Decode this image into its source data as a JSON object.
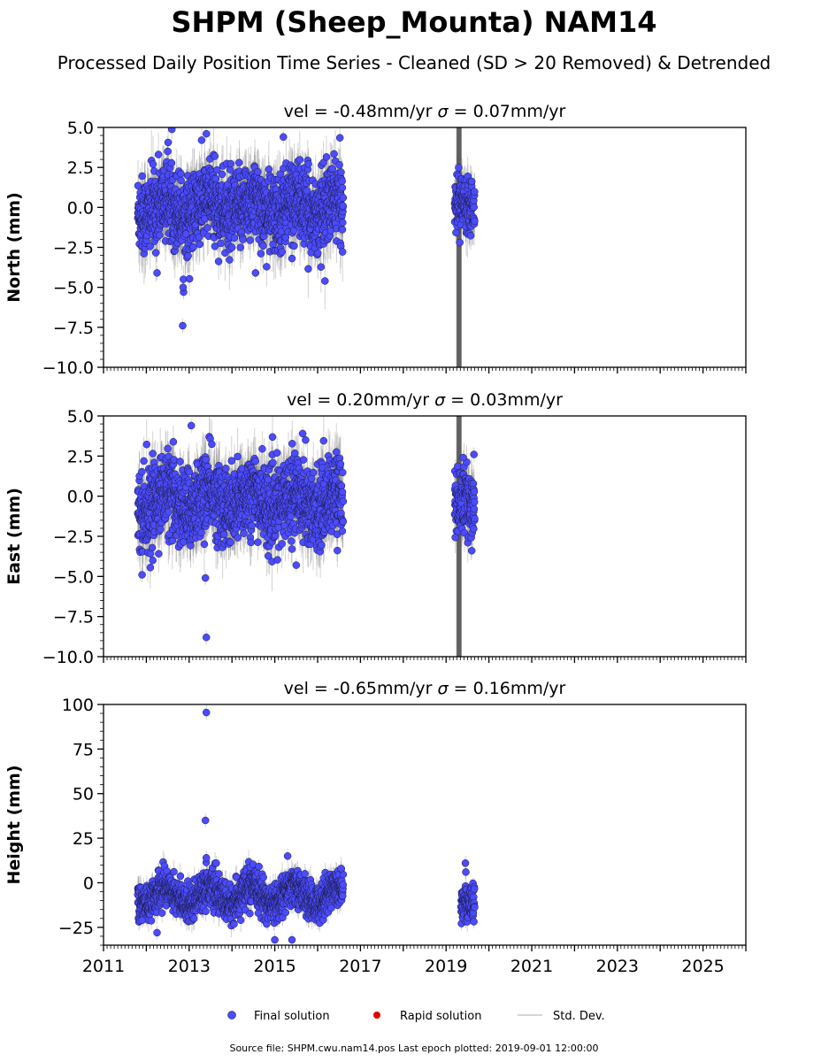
{
  "title": "SHPM (Sheep_Mounta) NAM14",
  "subtitle": "Processed Daily Position Time Series - Cleaned (SD > 20 Removed) & Detrended",
  "source_note": "Source file: SHPM.cwu.nam14.pos  Last epoch plotted: 2019-09-01 12:00:00",
  "legend": [
    {
      "label": "Final solution",
      "color": "#4b4bff",
      "marker": "circle"
    },
    {
      "label": "Rapid solution",
      "color": "#e00000",
      "marker": "circle"
    },
    {
      "label": "Std. Dev.",
      "color": "#c8c8c8",
      "marker": "line"
    }
  ],
  "chart_data": [
    {
      "type": "scatter",
      "panel": "north",
      "title_prefix": "vel = -0.48mm/yr",
      "title_sigma": " = 0.07mm/yr",
      "ylabel": "North (mm)",
      "xlim": [
        2011,
        2026
      ],
      "ylim": [
        -10,
        5
      ],
      "yticks": [
        5,
        2.5,
        0,
        -2.5,
        -5,
        -7.5,
        -10
      ],
      "ytick_labels": [
        "5.0",
        "2.5",
        "0.0",
        "−2.5",
        "−5.0",
        "−7.5",
        "−10.0"
      ],
      "yminor_step": 0.5,
      "segments": [
        {
          "start": 2011.8,
          "end": 2016.6,
          "center": 0.0,
          "spread": 1.2,
          "err": 1.3,
          "seasonal": 0.5
        },
        {
          "start": 2019.2,
          "end": 2019.67,
          "center": 0.2,
          "spread": 0.8,
          "err": 1.0,
          "seasonal": 0.2
        }
      ],
      "wide_error_bar": {
        "x": 2019.3,
        "low": -10,
        "high": 5
      },
      "outliers": [
        {
          "x": 2012.85,
          "y": -7.4
        },
        {
          "x": 2012.87,
          "y": -5.3
        },
        {
          "x": 2012.86,
          "y": -5.0
        },
        {
          "x": 2012.25,
          "y": -4.1
        },
        {
          "x": 2014.55,
          "y": -4.1
        },
        {
          "x": 2015.4,
          "y": -3.2
        },
        {
          "x": 2013.4,
          "y": 4.6
        },
        {
          "x": 2015.2,
          "y": 4.4
        },
        {
          "x": 2012.5,
          "y": 3.5
        },
        {
          "x": 2013.6,
          "y": 3.2
        },
        {
          "x": 2019.32,
          "y": -2.2
        }
      ]
    },
    {
      "type": "scatter",
      "panel": "east",
      "title_prefix": "vel = 0.20mm/yr",
      "title_sigma": " = 0.03mm/yr",
      "ylabel": "East (mm)",
      "xlim": [
        2011,
        2026
      ],
      "ylim": [
        -10,
        5
      ],
      "yticks": [
        5,
        2.5,
        0,
        -2.5,
        -5,
        -7.5,
        -10
      ],
      "ytick_labels": [
        "5.0",
        "2.5",
        "0.0",
        "−2.5",
        "−5.0",
        "−7.5",
        "−10.0"
      ],
      "yminor_step": 0.5,
      "segments": [
        {
          "start": 2011.8,
          "end": 2016.6,
          "center": -0.3,
          "spread": 1.2,
          "err": 1.3,
          "seasonal": 0.6
        },
        {
          "start": 2019.2,
          "end": 2019.67,
          "center": -0.6,
          "spread": 1.0,
          "err": 1.0,
          "seasonal": 0.3
        }
      ],
      "wide_error_bar": {
        "x": 2019.3,
        "low": -10,
        "high": 5
      },
      "outliers": [
        {
          "x": 2013.4,
          "y": -8.8
        },
        {
          "x": 2013.38,
          "y": -5.1
        },
        {
          "x": 2011.9,
          "y": -4.9
        },
        {
          "x": 2012.15,
          "y": -4.0
        },
        {
          "x": 2015.5,
          "y": -4.3
        },
        {
          "x": 2013.05,
          "y": 4.4
        },
        {
          "x": 2015.65,
          "y": 3.9
        },
        {
          "x": 2015.72,
          "y": 3.5
        },
        {
          "x": 2019.6,
          "y": -3.4
        },
        {
          "x": 2019.65,
          "y": 2.6
        },
        {
          "x": 2019.4,
          "y": 2.4
        }
      ]
    },
    {
      "type": "scatter",
      "panel": "height",
      "title_prefix": "vel = -0.65mm/yr",
      "title_sigma": " = 0.16mm/yr",
      "ylabel": "Height (mm)",
      "xlim": [
        2011,
        2026
      ],
      "ylim": [
        -35,
        100
      ],
      "yticks": [
        100,
        75,
        50,
        25,
        0,
        -25
      ],
      "ytick_labels": [
        "100",
        "75",
        "50",
        "25",
        "0",
        "−25"
      ],
      "yminor_step": 5,
      "xticks": [
        2011,
        2013,
        2015,
        2017,
        2019,
        2021,
        2023,
        2025
      ],
      "xtick_labels": [
        "2011",
        "2013",
        "2015",
        "2017",
        "2019",
        "2021",
        "2023",
        "2025"
      ],
      "segments": [
        {
          "start": 2011.8,
          "end": 2016.6,
          "center": -7,
          "spread": 5,
          "err": 5,
          "seasonal": 5
        },
        {
          "start": 2019.35,
          "end": 2019.67,
          "center": -13,
          "spread": 5,
          "err": 4,
          "seasonal": 2
        }
      ],
      "wide_error_bar": null,
      "outliers": [
        {
          "x": 2013.4,
          "y": 95.5
        },
        {
          "x": 2013.38,
          "y": 35
        },
        {
          "x": 2013.4,
          "y": 14
        },
        {
          "x": 2015.0,
          "y": -32
        },
        {
          "x": 2015.4,
          "y": -32
        },
        {
          "x": 2012.25,
          "y": -28
        },
        {
          "x": 2011.9,
          "y": -21
        },
        {
          "x": 2019.45,
          "y": 11
        },
        {
          "x": 2019.46,
          "y": 6
        },
        {
          "x": 2015.3,
          "y": 15
        },
        {
          "x": 2016.55,
          "y": 8
        }
      ]
    }
  ]
}
